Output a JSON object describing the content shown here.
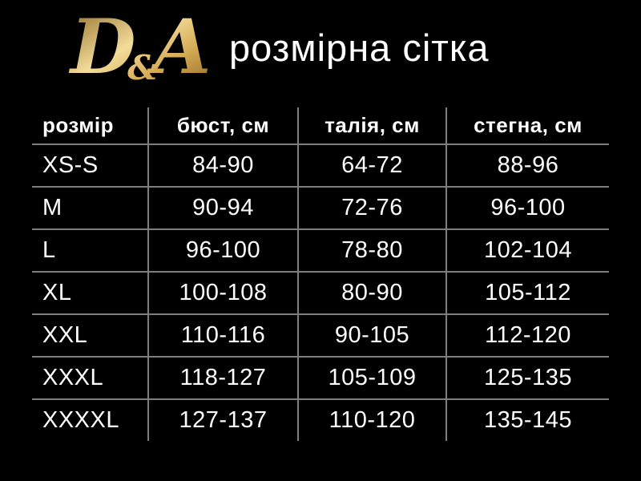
{
  "brand": {
    "logo_d": "D",
    "logo_amp": "&",
    "logo_a": "A"
  },
  "header": {
    "title": "розмірна сітка"
  },
  "colors": {
    "background": "#000000",
    "text": "#ffffff",
    "grid_line": "#7e7e7e",
    "gold_dark": "#8a6420",
    "gold_mid": "#d4a953",
    "gold_light": "#f3dc9a"
  },
  "chart_data": {
    "type": "table",
    "title": "розмірна сітка",
    "columns": [
      "розмір",
      "бюст, см",
      "талія, см",
      "стегна, см"
    ],
    "rows": [
      [
        "XS-S",
        "84-90",
        "64-72",
        "88-96"
      ],
      [
        "M",
        "90-94",
        "72-76",
        "96-100"
      ],
      [
        "L",
        "96-100",
        "78-80",
        "102-104"
      ],
      [
        "XL",
        "100-108",
        "80-90",
        "105-112"
      ],
      [
        "XXL",
        "110-116",
        "90-105",
        "112-120"
      ],
      [
        "XXXL",
        "118-127",
        "105-109",
        "125-135"
      ],
      [
        "XXXXL",
        "127-137",
        "110-120",
        "135-145"
      ]
    ]
  }
}
